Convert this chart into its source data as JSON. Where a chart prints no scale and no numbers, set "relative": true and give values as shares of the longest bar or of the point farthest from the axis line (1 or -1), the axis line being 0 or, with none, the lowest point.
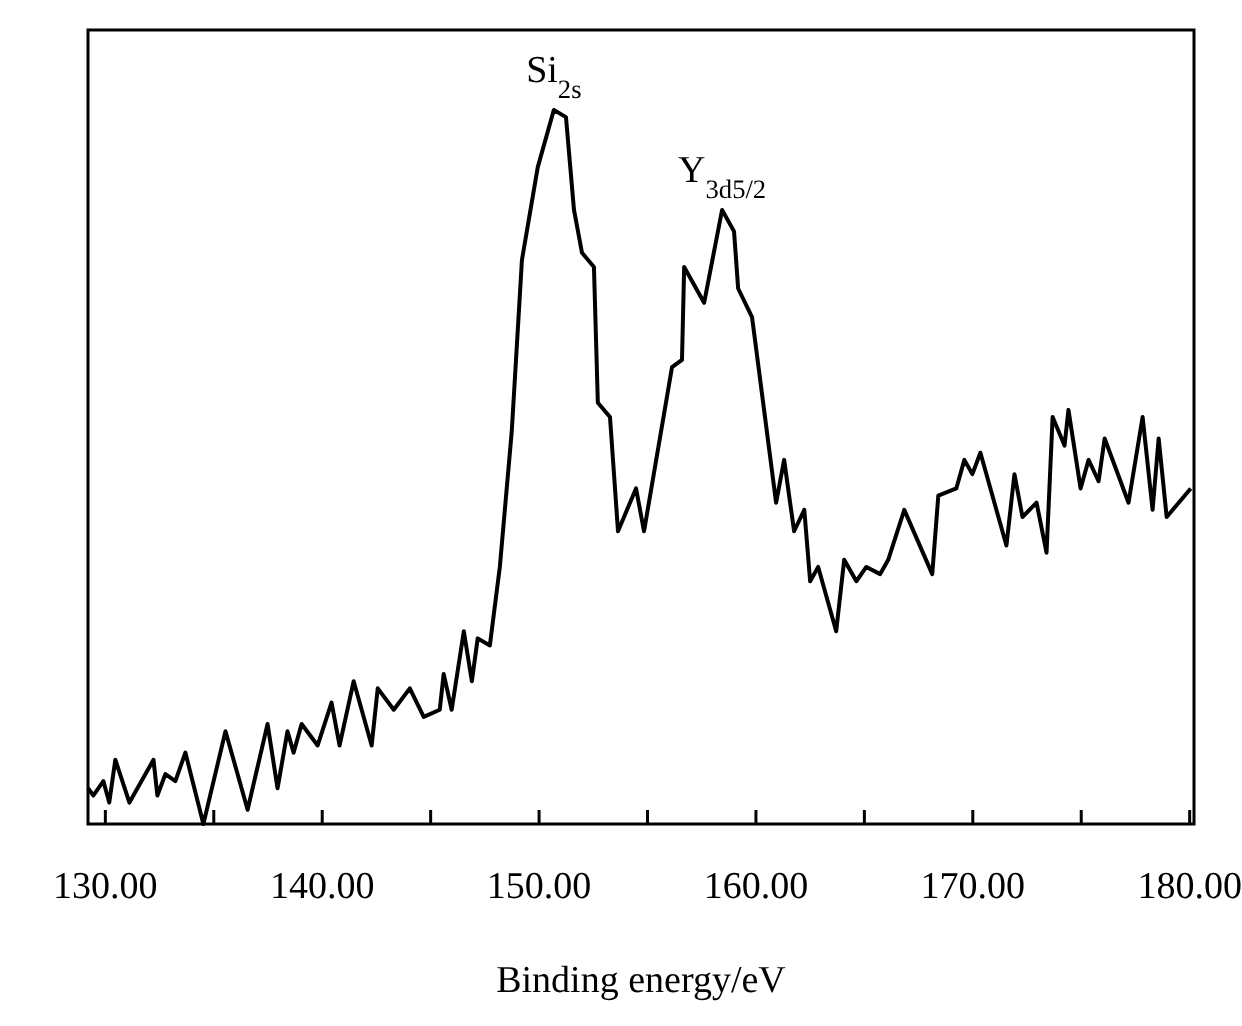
{
  "chart_data": {
    "type": "line",
    "relative": true,
    "xlabel": "Binding energy/eV",
    "xlim": [
      129.2,
      180.2
    ],
    "xticks": [
      {
        "value": 130,
        "label": "130.00"
      },
      {
        "value": 135,
        "label": null
      },
      {
        "value": 140,
        "label": "140.00"
      },
      {
        "value": 145,
        "label": null
      },
      {
        "value": 150,
        "label": "150.00"
      },
      {
        "value": 155,
        "label": null
      },
      {
        "value": 160,
        "label": "160.00"
      },
      {
        "value": 165,
        "label": null
      },
      {
        "value": 170,
        "label": "170.00"
      },
      {
        "value": 175,
        "label": null
      },
      {
        "value": 180,
        "label": "180.00"
      }
    ],
    "grid": false,
    "marker": "none",
    "line_style": "solid",
    "annotations": [
      {
        "text": "Si$_{2s}$",
        "x": 150.68,
        "y": 1.0
      },
      {
        "text": "Y$_{3d5/2}$",
        "x": 158.44,
        "y": 0.86
      }
    ],
    "series": [
      {
        "color": "#000000",
        "x": [
          129.2,
          129.45,
          129.91,
          130.18,
          130.46,
          131.11,
          132.22,
          132.4,
          132.77,
          133.23,
          133.69,
          134.52,
          135.54,
          136.56,
          137.48,
          137.94,
          138.4,
          138.68,
          139.05,
          139.79,
          140.43,
          140.8,
          141.45,
          142.28,
          142.56,
          143.3,
          144.04,
          144.68,
          145.42,
          145.6,
          145.97,
          146.53,
          146.9,
          147.17,
          147.73,
          148.19,
          148.74,
          149.21,
          149.94,
          150.68,
          151.24,
          151.61,
          151.98,
          152.53,
          152.71,
          153.27,
          153.64,
          154.47,
          154.84,
          156.13,
          156.59,
          156.69,
          157.61,
          158.44,
          158.99,
          159.18,
          159.82,
          160.93,
          161.3,
          161.76,
          162.23,
          162.5,
          162.87,
          163.7,
          164.07,
          164.63,
          165.09,
          165.73,
          166.1,
          166.84,
          168.13,
          168.41,
          169.24,
          169.61,
          169.98,
          170.35,
          171.55,
          171.92,
          172.29,
          172.94,
          173.4,
          173.68,
          174.23,
          174.41,
          174.97,
          175.34,
          175.8,
          176.08,
          177.18,
          177.83,
          178.29,
          178.57,
          178.94,
          180.05
        ],
        "values": [
          0.05,
          0.04,
          0.06,
          0.03,
          0.09,
          0.03,
          0.09,
          0.04,
          0.07,
          0.06,
          0.1,
          0,
          0.13,
          0.02,
          0.14,
          0.05,
          0.13,
          0.1,
          0.14,
          0.11,
          0.17,
          0.11,
          0.2,
          0.11,
          0.19,
          0.16,
          0.19,
          0.15,
          0.16,
          0.21,
          0.16,
          0.27,
          0.2,
          0.26,
          0.25,
          0.36,
          0.55,
          0.79,
          0.92,
          1.0,
          0.99,
          0.86,
          0.8,
          0.78,
          0.59,
          0.57,
          0.41,
          0.47,
          0.41,
          0.64,
          0.65,
          0.78,
          0.73,
          0.86,
          0.83,
          0.75,
          0.71,
          0.45,
          0.51,
          0.41,
          0.44,
          0.34,
          0.36,
          0.27,
          0.37,
          0.34,
          0.36,
          0.35,
          0.37,
          0.44,
          0.35,
          0.46,
          0.47,
          0.51,
          0.49,
          0.52,
          0.39,
          0.49,
          0.43,
          0.45,
          0.38,
          0.57,
          0.53,
          0.58,
          0.47,
          0.51,
          0.48,
          0.54,
          0.45,
          0.57,
          0.44,
          0.54,
          0.43,
          0.47
        ]
      }
    ]
  }
}
